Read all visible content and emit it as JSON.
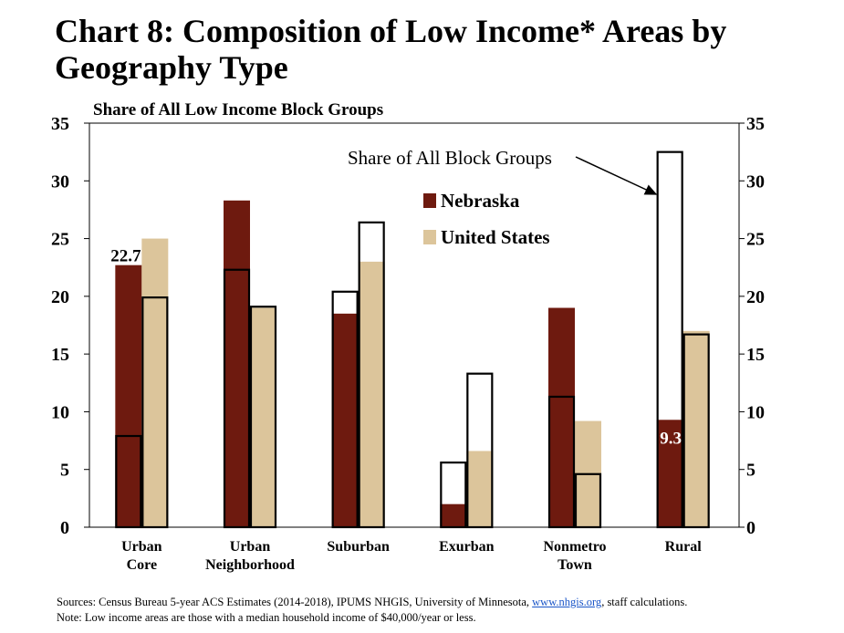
{
  "title": "Chart 8: Composition of Low Income* Areas by Geography Type",
  "chart_data": {
    "type": "bar",
    "title": "Chart 8: Composition of Low Income* Areas by Geography Type",
    "ylabel": "Share of All Low Income Block Groups",
    "ylim": [
      0,
      35
    ],
    "yticks": [
      0,
      5,
      10,
      15,
      20,
      25,
      30,
      35
    ],
    "categories": [
      "Urban Core",
      "Urban Neighborhood",
      "Suburban",
      "Exurban",
      "Nonmetro Town",
      "Rural"
    ],
    "series": [
      {
        "name": "Nebraska",
        "color": "#6e1a0f",
        "values": [
          22.7,
          28.3,
          18.5,
          2.0,
          19.0,
          9.3
        ]
      },
      {
        "name": "United States",
        "color": "#dcc59b",
        "values": [
          25.0,
          19.0,
          23.0,
          6.6,
          9.2,
          17.0
        ]
      }
    ],
    "outline_series": {
      "name": "Share of All Block Groups",
      "nebraska": [
        7.9,
        22.3,
        20.4,
        5.6,
        11.3,
        32.5
      ],
      "united_states": [
        19.9,
        19.1,
        26.4,
        13.3,
        4.6,
        16.7
      ]
    },
    "data_labels": [
      {
        "category": "Urban Core",
        "series": "Nebraska",
        "text": "22.7"
      },
      {
        "category": "Rural",
        "series": "Nebraska",
        "text": "9.3"
      }
    ],
    "annotation": "Share of All Block Groups",
    "legend_position": "top-center",
    "grid": false
  },
  "sources": {
    "prefix": "Sources: Census Bureau 5-year ACS Estimates (2014-2018), IPUMS NHGIS, University of Minnesota,",
    "link": "www.nhgis.org",
    "suffix": ", staff calculations.",
    "note": "Note: Low income areas are those with a median household income of $40,000/year or less."
  }
}
